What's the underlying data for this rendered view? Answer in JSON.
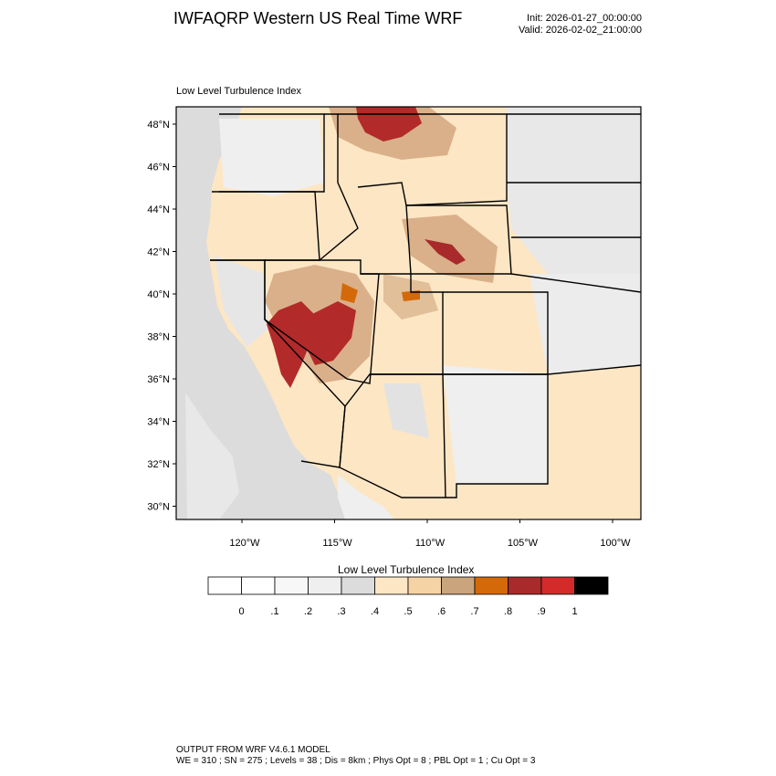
{
  "header": {
    "title": "IWFAQRP Western US Real Time WRF",
    "init": "Init: 2026-01-27_00:00:00",
    "valid": "Valid: 2026-02-02_21:00:00"
  },
  "map": {
    "subtitle": "Low Level Turbulence Index",
    "lat_labels": [
      "48°N",
      "46°N",
      "44°N",
      "42°N",
      "40°N",
      "38°N",
      "36°N",
      "34°N",
      "32°N",
      "30°N"
    ],
    "lon_labels": [
      "120°W",
      "115°W",
      "110°W",
      "105°W",
      "100°W"
    ],
    "colors": {
      "background_land": "#fde6c4",
      "ocean": "#d9d9d9",
      "high_core": "#b22a2a",
      "mid_brown": "#c79a73",
      "orange": "#d4690a",
      "light_gray": "#efefef"
    }
  },
  "colorbar": {
    "title": "Low Level Turbulence Index",
    "labels": [
      "0",
      ".1",
      ".2",
      ".3",
      ".4",
      ".5",
      ".6",
      ".7",
      ".8",
      ".9",
      "1"
    ],
    "colors": [
      "#ffffff",
      "#f7f7f7",
      "#efefef",
      "#dcdcdc",
      "#fde6c4",
      "#f6d3a4",
      "#c9a47c",
      "#d4690a",
      "#a82a2a",
      "#d42a2a",
      "#000000"
    ]
  },
  "footer": {
    "line1": "OUTPUT FROM WRF V4.6.1 MODEL",
    "line2": "WE = 310 ; SN = 275 ; Levels = 38 ; Dis = 8km ; Phys Opt = 8 ; PBL Opt = 1 ; Cu Opt = 3"
  }
}
